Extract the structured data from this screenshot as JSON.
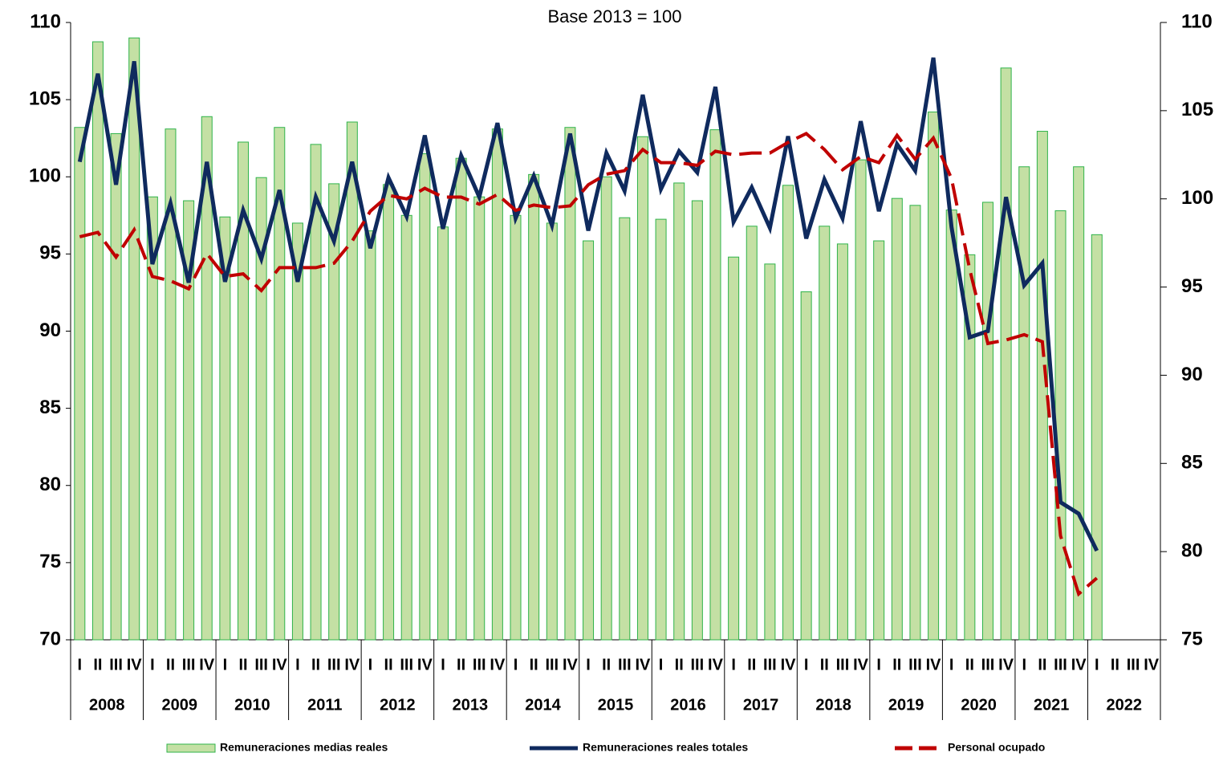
{
  "chart_data": {
    "type": "bar_line",
    "subtitle": "Base 2013 = 100",
    "categories": [
      "I",
      "II",
      "III",
      "IV",
      "I",
      "II",
      "III",
      "IV",
      "I",
      "II",
      "III",
      "IV",
      "I",
      "II",
      "III",
      "IV",
      "I",
      "II",
      "III",
      "IV",
      "I",
      "II",
      "III",
      "IV",
      "I",
      "II",
      "III",
      "IV",
      "I",
      "II",
      "III",
      "IV",
      "I",
      "II",
      "III",
      "IV",
      "I",
      "II",
      "III",
      "IV",
      "I",
      "II",
      "III",
      "IV",
      "I",
      "II",
      "III",
      "IV",
      "I",
      "II",
      "III",
      "IV",
      "I",
      "II",
      "III",
      "IV",
      "I",
      "II",
      "III",
      "IV"
    ],
    "years": [
      "2008",
      "2009",
      "2010",
      "2011",
      "2012",
      "2013",
      "2014",
      "2015",
      "2016",
      "2017",
      "2018",
      "2019",
      "2020",
      "2021",
      "2022"
    ],
    "ylim": [
      70,
      110
    ],
    "yticks": [
      70,
      75,
      80,
      85,
      90,
      95,
      100,
      105,
      110
    ],
    "y2lim": [
      75,
      110
    ],
    "y2ticks": [
      75,
      80,
      85,
      90,
      95,
      100,
      105,
      110
    ],
    "legend": "bottom",
    "series": [
      {
        "name": "Remuneraciones medias reales",
        "type": "bar",
        "color": "#c4e0a4",
        "edge_color": "#2fb34a",
        "values": [
          103.2,
          108.75,
          102.8,
          109.0,
          98.7,
          103.1,
          98.45,
          103.9,
          97.4,
          102.25,
          99.95,
          103.2,
          97.0,
          102.1,
          99.55,
          103.55,
          96.5,
          99.5,
          97.5,
          101.5,
          96.75,
          101.2,
          98.7,
          103.1,
          97.5,
          100.15,
          97.0,
          103.2,
          95.85,
          100.0,
          97.35,
          102.6,
          97.25,
          99.6,
          98.45,
          103.05,
          94.8,
          96.8,
          94.35,
          99.45,
          92.55,
          96.8,
          95.65,
          101.1,
          95.85,
          98.6,
          98.15,
          104.2,
          97.85,
          94.95,
          98.35,
          107.05,
          100.65,
          102.95,
          97.8,
          100.65,
          96.25,
          null,
          null,
          null
        ]
      },
      {
        "name": "Remuneraciones  reales totales",
        "type": "line",
        "axis": "y2",
        "color": "#0f2a5e",
        "values": [
          102.1,
          107.1,
          100.8,
          107.8,
          96.3,
          99.75,
          95.25,
          102.1,
          95.3,
          99.35,
          96.6,
          100.5,
          95.3,
          100.1,
          97.6,
          102.1,
          97.2,
          101.2,
          99.0,
          103.6,
          98.3,
          102.45,
          100.1,
          104.3,
          98.9,
          101.3,
          98.5,
          103.7,
          98.2,
          102.6,
          100.45,
          105.9,
          100.55,
          102.7,
          101.5,
          106.35,
          98.7,
          100.65,
          98.35,
          103.55,
          97.75,
          101.1,
          98.9,
          104.4,
          99.3,
          103.1,
          101.6,
          108.0,
          98.4,
          92.15,
          92.5,
          100.1,
          95.1,
          96.35,
          82.8,
          82.15,
          80.05,
          null,
          null,
          null
        ]
      },
      {
        "name": "Personal ocupado",
        "type": "line",
        "dashed": true,
        "axis": "y2",
        "color": "#c00000",
        "values": [
          97.85,
          98.1,
          96.7,
          98.25,
          95.6,
          95.35,
          94.9,
          96.9,
          95.6,
          95.75,
          94.8,
          96.1,
          96.1,
          96.1,
          96.35,
          97.6,
          99.3,
          100.2,
          100.0,
          100.6,
          100.1,
          100.1,
          99.7,
          100.25,
          99.35,
          99.65,
          99.5,
          99.6,
          100.8,
          101.4,
          101.6,
          102.8,
          102.05,
          102.05,
          101.9,
          102.7,
          102.5,
          102.6,
          102.6,
          103.2,
          103.7,
          102.8,
          101.65,
          102.4,
          102.05,
          103.6,
          102.25,
          103.45,
          101.15,
          96.0,
          91.8,
          92.0,
          92.3,
          91.9,
          80.9,
          77.6,
          78.5,
          null,
          null,
          null
        ]
      }
    ]
  }
}
